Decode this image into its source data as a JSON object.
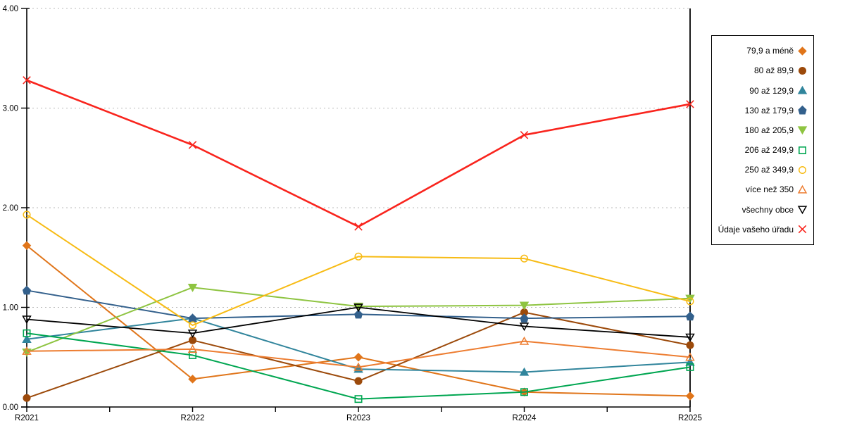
{
  "chart_data": {
    "type": "line",
    "title": "",
    "xlabel": "",
    "ylabel": "",
    "x": [
      "R2021",
      "R2022",
      "R2023",
      "R2024",
      "R2025"
    ],
    "ylim": [
      0,
      4
    ],
    "yticks": [
      {
        "v": 0,
        "label": "0.00"
      },
      {
        "v": 1,
        "label": "1.00"
      },
      {
        "v": 2,
        "label": "2.00"
      },
      {
        "v": 3,
        "label": "3.00"
      },
      {
        "v": 4,
        "label": "4.00"
      }
    ],
    "grid": "horizontal-dotted",
    "gridline_color": "#b8b8b8",
    "axis_color": "#000000",
    "legend_position": "right-outside",
    "series": [
      {
        "name": "79,9 a méně",
        "color": "#e0751a",
        "marker": "diamond",
        "line_width": 2,
        "values": [
          1.62,
          0.28,
          0.5,
          0.15,
          0.11
        ]
      },
      {
        "name": "80 až 89,9",
        "color": "#9c4a0b",
        "marker": "circle",
        "line_width": 2,
        "values": [
          0.09,
          0.67,
          0.26,
          0.95,
          0.62
        ]
      },
      {
        "name": "90 až 129,9",
        "color": "#31859c",
        "marker": "triangle-up",
        "line_width": 2,
        "values": [
          0.68,
          0.89,
          0.38,
          0.35,
          0.45
        ]
      },
      {
        "name": "130 až 179,9",
        "color": "#33608c",
        "marker": "pentagon",
        "line_width": 2,
        "values": [
          1.17,
          0.89,
          0.93,
          0.89,
          0.91
        ]
      },
      {
        "name": "180 až 205,9",
        "color": "#8ec441",
        "marker": "triangle-down",
        "line_width": 2,
        "values": [
          0.55,
          1.2,
          1.01,
          1.02,
          1.09
        ]
      },
      {
        "name": "206 až 249,9",
        "color": "#00a651",
        "marker": "square-open",
        "line_width": 2,
        "values": [
          0.74,
          0.52,
          0.08,
          0.15,
          0.4
        ]
      },
      {
        "name": "250 až 349,9",
        "color": "#f7bb14",
        "marker": "circle-open",
        "line_width": 2,
        "values": [
          1.93,
          0.82,
          1.51,
          1.49,
          1.06
        ]
      },
      {
        "name": "více než 350",
        "color": "#ed7d31",
        "marker": "triangle-up-open",
        "line_width": 2,
        "values": [
          0.56,
          0.58,
          0.4,
          0.66,
          0.5
        ]
      },
      {
        "name": "všechny obce",
        "color": "#000000",
        "marker": "triangle-down-open",
        "line_width": 1.8,
        "values": [
          0.88,
          0.74,
          1.0,
          0.81,
          0.7
        ]
      },
      {
        "name": "Údaje vašeho úřadu",
        "color": "#f9241d",
        "marker": "x-cross",
        "line_width": 2.6,
        "values": [
          3.28,
          2.63,
          1.81,
          2.73,
          3.04
        ]
      }
    ]
  }
}
